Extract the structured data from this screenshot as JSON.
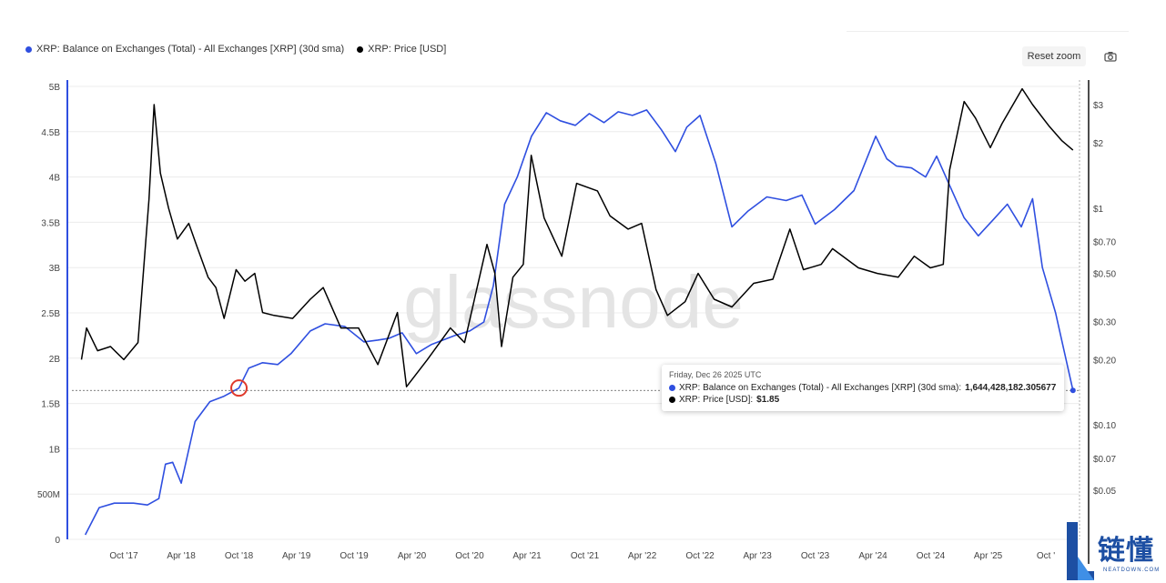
{
  "legend": {
    "series_1": "XRP: Balance on Exchanges (Total) - All Exchanges [XRP] (30d sma)",
    "series_2": "XRP: Price [USD]"
  },
  "toolbar": {
    "reset_zoom": "Reset zoom",
    "camera_icon": "camera-icon"
  },
  "watermark": "glassnode",
  "tooltip": {
    "date": "Friday, Dec 26 2025 UTC",
    "balance_label": "XRP: Balance on Exchanges (Total) - All Exchanges [XRP] (30d sma):",
    "balance_value": "1,644,428,182.305677",
    "price_label": "XRP: Price [USD]:",
    "price_value": "$1.85"
  },
  "logo": {
    "main": "链懂",
    "sub": "NEATDOWN.COM"
  },
  "colors": {
    "balance": "#2f4fe0",
    "price": "#000000",
    "highlight": "#e0392b",
    "grid": "#ececec"
  },
  "chart_data": {
    "type": "line",
    "x_ticks": [
      "Oct '17",
      "Apr '18",
      "Oct '18",
      "Apr '19",
      "Oct '19",
      "Apr '20",
      "Oct '20",
      "Apr '21",
      "Oct '21",
      "Apr '22",
      "Oct '22",
      "Apr '23",
      "Oct '23",
      "Apr '24",
      "Oct '24",
      "Apr '25",
      "Oct '"
    ],
    "y_left_ticks": [
      "0",
      "500M",
      "1B",
      "1.5B",
      "2B",
      "2.5B",
      "3B",
      "3.5B",
      "4B",
      "4.5B",
      "5B"
    ],
    "y_left_range": [
      0,
      5000000000
    ],
    "y_right_ticks": [
      "$0.05",
      "$0.07",
      "$0.10",
      "$0.20",
      "$0.30",
      "$0.50",
      "$0.70",
      "$1",
      "$2",
      "$3"
    ],
    "y_right_scale": "log",
    "grid": true,
    "legend_position": "top-left",
    "series": [
      {
        "name": "XRP: Balance on Exchanges (Total) - All Exchanges [XRP] (30d sma)",
        "axis": "left",
        "points": [
          [
            "2017-06-01",
            0.05
          ],
          [
            "2017-07-15",
            0.35
          ],
          [
            "2017-09-01",
            0.4
          ],
          [
            "2017-11-01",
            0.4
          ],
          [
            "2017-12-15",
            0.38
          ],
          [
            "2018-01-20",
            0.45
          ],
          [
            "2018-02-10",
            0.83
          ],
          [
            "2018-03-05",
            0.85
          ],
          [
            "2018-04-01",
            0.62
          ],
          [
            "2018-05-15",
            1.3
          ],
          [
            "2018-07-01",
            1.52
          ],
          [
            "2018-08-15",
            1.58
          ],
          [
            "2018-10-01",
            1.67
          ],
          [
            "2018-11-01",
            1.89
          ],
          [
            "2018-12-15",
            1.95
          ],
          [
            "2019-02-01",
            1.93
          ],
          [
            "2019-03-15",
            2.05
          ],
          [
            "2019-05-15",
            2.3
          ],
          [
            "2019-07-01",
            2.38
          ],
          [
            "2019-09-01",
            2.35
          ],
          [
            "2019-11-01",
            2.18
          ],
          [
            "2019-12-15",
            2.2
          ],
          [
            "2020-01-20",
            2.22
          ],
          [
            "2020-03-01",
            2.28
          ],
          [
            "2020-04-15",
            2.05
          ],
          [
            "2020-06-01",
            2.15
          ],
          [
            "2020-08-15",
            2.25
          ],
          [
            "2020-10-01",
            2.3
          ],
          [
            "2020-11-15",
            2.4
          ],
          [
            "2020-12-15",
            2.8
          ],
          [
            "2021-01-20",
            3.7
          ],
          [
            "2021-03-01",
            4.0
          ],
          [
            "2021-04-15",
            4.45
          ],
          [
            "2021-06-01",
            4.71
          ],
          [
            "2021-07-15",
            4.62
          ],
          [
            "2021-09-01",
            4.57
          ],
          [
            "2021-10-15",
            4.7
          ],
          [
            "2021-12-01",
            4.6
          ],
          [
            "2022-01-15",
            4.72
          ],
          [
            "2022-03-01",
            4.68
          ],
          [
            "2022-04-15",
            4.74
          ],
          [
            "2022-06-01",
            4.52
          ],
          [
            "2022-07-15",
            4.28
          ],
          [
            "2022-08-20",
            4.55
          ],
          [
            "2022-10-01",
            4.68
          ],
          [
            "2022-11-20",
            4.15
          ],
          [
            "2023-01-10",
            3.45
          ],
          [
            "2023-03-01",
            3.62
          ],
          [
            "2023-05-01",
            3.78
          ],
          [
            "2023-07-01",
            3.74
          ],
          [
            "2023-08-20",
            3.8
          ],
          [
            "2023-10-01",
            3.48
          ],
          [
            "2023-12-01",
            3.64
          ],
          [
            "2024-02-01",
            3.85
          ],
          [
            "2024-04-10",
            4.45
          ],
          [
            "2024-05-15",
            4.2
          ],
          [
            "2024-06-15",
            4.12
          ],
          [
            "2024-08-01",
            4.1
          ],
          [
            "2024-09-15",
            4.0
          ],
          [
            "2024-10-20",
            4.23
          ],
          [
            "2024-12-01",
            3.9
          ],
          [
            "2025-01-15",
            3.55
          ],
          [
            "2025-03-01",
            3.35
          ],
          [
            "2025-04-15",
            3.52
          ],
          [
            "2025-06-01",
            3.7
          ],
          [
            "2025-07-15",
            3.45
          ],
          [
            "2025-08-20",
            3.76
          ],
          [
            "2025-09-20",
            3.0
          ],
          [
            "2025-11-01",
            2.5
          ],
          [
            "2025-12-26",
            1.644
          ]
        ]
      },
      {
        "name": "XRP: Price [USD]",
        "axis": "right",
        "points": [
          [
            "2017-05-20",
            0.2
          ],
          [
            "2017-06-05",
            0.28
          ],
          [
            "2017-07-10",
            0.22
          ],
          [
            "2017-08-20",
            0.23
          ],
          [
            "2017-10-01",
            0.2
          ],
          [
            "2017-11-15",
            0.24
          ],
          [
            "2017-12-20",
            1.1
          ],
          [
            "2018-01-05",
            3.0
          ],
          [
            "2018-01-25",
            1.45
          ],
          [
            "2018-02-20",
            1.0
          ],
          [
            "2018-03-20",
            0.72
          ],
          [
            "2018-04-25",
            0.85
          ],
          [
            "2018-05-20",
            0.67
          ],
          [
            "2018-06-25",
            0.48
          ],
          [
            "2018-07-20",
            0.43
          ],
          [
            "2018-08-15",
            0.31
          ],
          [
            "2018-09-22",
            0.52
          ],
          [
            "2018-10-20",
            0.46
          ],
          [
            "2018-11-20",
            0.5
          ],
          [
            "2018-12-15",
            0.33
          ],
          [
            "2019-01-20",
            0.32
          ],
          [
            "2019-03-20",
            0.31
          ],
          [
            "2019-05-15",
            0.38
          ],
          [
            "2019-06-25",
            0.43
          ],
          [
            "2019-08-20",
            0.28
          ],
          [
            "2019-10-15",
            0.28
          ],
          [
            "2019-12-15",
            0.19
          ],
          [
            "2020-02-15",
            0.33
          ],
          [
            "2020-03-15",
            0.15
          ],
          [
            "2020-05-20",
            0.2
          ],
          [
            "2020-08-01",
            0.28
          ],
          [
            "2020-09-15",
            0.24
          ],
          [
            "2020-11-25",
            0.68
          ],
          [
            "2020-12-20",
            0.5
          ],
          [
            "2021-01-10",
            0.23
          ],
          [
            "2021-02-15",
            0.48
          ],
          [
            "2021-03-20",
            0.55
          ],
          [
            "2021-04-14",
            1.75
          ],
          [
            "2021-05-25",
            0.9
          ],
          [
            "2021-07-20",
            0.6
          ],
          [
            "2021-09-05",
            1.3
          ],
          [
            "2021-11-10",
            1.2
          ],
          [
            "2021-12-20",
            0.92
          ],
          [
            "2022-02-15",
            0.8
          ],
          [
            "2022-03-30",
            0.85
          ],
          [
            "2022-05-15",
            0.42
          ],
          [
            "2022-06-20",
            0.32
          ],
          [
            "2022-08-15",
            0.37
          ],
          [
            "2022-09-25",
            0.5
          ],
          [
            "2022-11-15",
            0.38
          ],
          [
            "2023-01-10",
            0.35
          ],
          [
            "2023-03-20",
            0.45
          ],
          [
            "2023-05-20",
            0.47
          ],
          [
            "2023-07-13",
            0.8
          ],
          [
            "2023-08-25",
            0.52
          ],
          [
            "2023-10-20",
            0.55
          ],
          [
            "2023-11-25",
            0.65
          ],
          [
            "2024-02-15",
            0.53
          ],
          [
            "2024-04-15",
            0.5
          ],
          [
            "2024-06-20",
            0.48
          ],
          [
            "2024-08-10",
            0.6
          ],
          [
            "2024-09-30",
            0.53
          ],
          [
            "2024-11-10",
            0.55
          ],
          [
            "2024-11-30",
            1.5
          ],
          [
            "2025-01-15",
            3.1
          ],
          [
            "2025-02-20",
            2.6
          ],
          [
            "2025-04-08",
            1.9
          ],
          [
            "2025-05-15",
            2.45
          ],
          [
            "2025-07-18",
            3.55
          ],
          [
            "2025-08-20",
            3.0
          ],
          [
            "2025-10-10",
            2.4
          ],
          [
            "2025-11-20",
            2.05
          ],
          [
            "2025-12-26",
            1.85
          ]
        ]
      }
    ],
    "highlight": {
      "date": "2018-10-01",
      "value": 1.67
    },
    "crosshair": {
      "date": "2025-12-26",
      "value": 1.644
    }
  }
}
